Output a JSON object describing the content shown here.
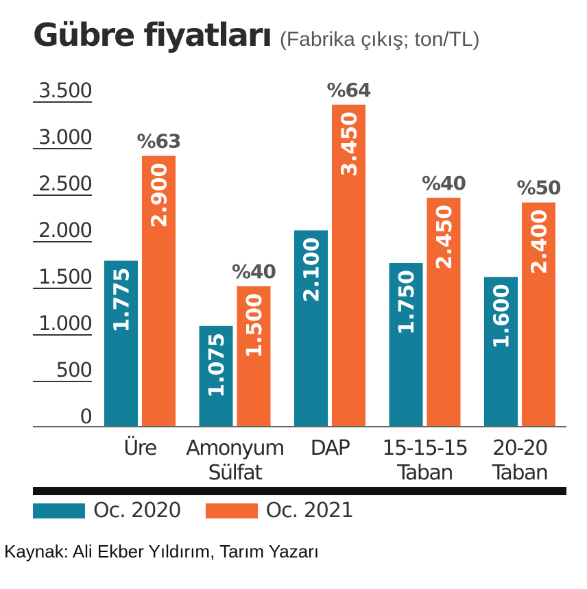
{
  "chart_data": {
    "type": "bar",
    "title": "Gübre fiyatları",
    "subtitle": "(Fabrika çıkış; ton/TL)",
    "categories": [
      [
        "Üre"
      ],
      [
        "Amonyum",
        "Sülfat"
      ],
      [
        "DAP"
      ],
      [
        "15-15-15",
        "Taban"
      ],
      [
        "20-20",
        "Taban"
      ]
    ],
    "series": [
      {
        "name": "Oc. 2020",
        "color": "#12809a",
        "values": [
          1775,
          1075,
          2100,
          1750,
          1600
        ],
        "labels": [
          "1.775",
          "1.075",
          "2.100",
          "1.750",
          "1.600"
        ]
      },
      {
        "name": "Oc. 2021",
        "color": "#f26a31",
        "values": [
          2900,
          1500,
          3450,
          2450,
          2400
        ],
        "labels": [
          "2.900",
          "1.500",
          "3.450",
          "2.450",
          "2.400"
        ]
      }
    ],
    "change_labels": [
      "%63",
      "%40",
      "%64",
      "%40",
      "%50"
    ],
    "ylim": [
      0,
      3500
    ],
    "yticks": [
      0,
      500,
      1000,
      1500,
      2000,
      2500,
      3000,
      3500
    ],
    "ytick_labels": [
      "0",
      "500",
      "1.000",
      "1.500",
      "2.000",
      "2.500",
      "3.000",
      "3.500"
    ],
    "grid": false,
    "legend_position": "bottom-left"
  },
  "source": "Kaynak: Ali Ekber Yıldırım, Tarım Yazarı"
}
